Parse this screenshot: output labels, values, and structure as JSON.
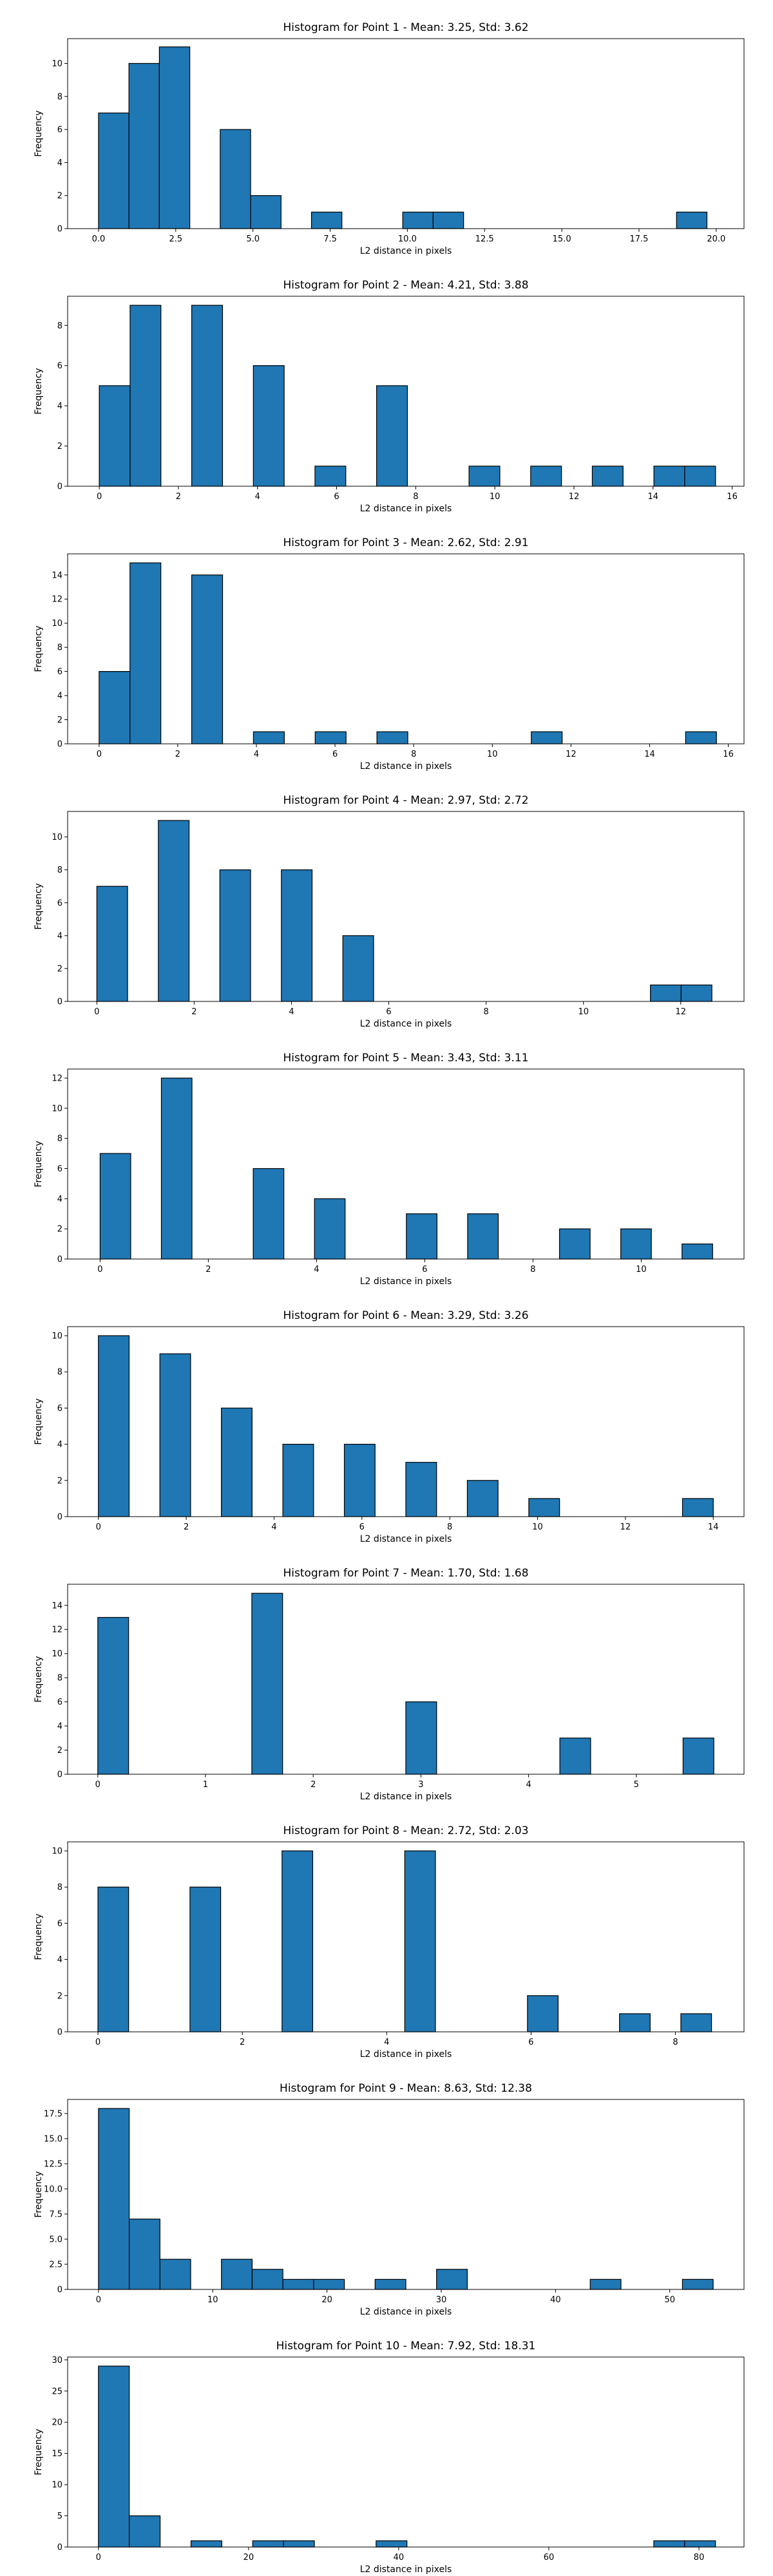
{
  "bar_color": "#1f77b4",
  "edge_color": "#000000",
  "chart_data": [
    {
      "type": "bar",
      "title": "Histogram for Point 1 - Mean: 3.25, Std: 3.62",
      "xlabel": "L2 distance in pixels",
      "ylabel": "Frequency",
      "xlim": [
        -1,
        20.9
      ],
      "ylim": [
        0,
        11.5
      ],
      "xticks": [
        0.0,
        2.5,
        5.0,
        7.5,
        10.0,
        12.5,
        15.0,
        17.5,
        20.0
      ],
      "xtick_labels": [
        "0.0",
        "2.5",
        "5.0",
        "7.5",
        "10.0",
        "12.5",
        "15.0",
        "17.5",
        "20.0"
      ],
      "yticks": [
        0,
        2,
        4,
        6,
        8,
        10
      ],
      "ytick_labels": [
        "0",
        "2",
        "4",
        "6",
        "8",
        "10"
      ],
      "bin_start": 0.0,
      "bin_width": 0.985,
      "values": [
        7,
        10,
        11,
        0,
        6,
        2,
        0,
        1,
        0,
        0,
        1,
        1,
        0,
        0,
        0,
        0,
        0,
        0,
        0,
        1
      ]
    },
    {
      "type": "bar",
      "title": "Histogram for Point 2 - Mean: 4.21, Std: 3.88",
      "xlabel": "L2 distance in pixels",
      "ylabel": "Frequency",
      "xlim": [
        -0.8,
        16.3
      ],
      "ylim": [
        0,
        9.45
      ],
      "xticks": [
        0,
        2,
        4,
        6,
        8,
        10,
        12,
        14,
        16
      ],
      "xtick_labels": [
        "0",
        "2",
        "4",
        "6",
        "8",
        "10",
        "12",
        "14",
        "16"
      ],
      "yticks": [
        0,
        2,
        4,
        6,
        8
      ],
      "ytick_labels": [
        "0",
        "2",
        "4",
        "6",
        "8"
      ],
      "bin_start": 0.0,
      "bin_width": 0.779,
      "values": [
        5,
        9,
        0,
        9,
        0,
        6,
        0,
        1,
        0,
        5,
        0,
        0,
        1,
        0,
        1,
        0,
        1,
        0,
        1,
        1
      ]
    },
    {
      "type": "bar",
      "title": "Histogram for Point 3 - Mean: 2.62, Std: 2.91",
      "xlabel": "L2 distance in pixels",
      "ylabel": "Frequency",
      "xlim": [
        -0.8,
        16.4
      ],
      "ylim": [
        0,
        15.75
      ],
      "xticks": [
        0,
        2,
        4,
        6,
        8,
        10,
        12,
        14,
        16
      ],
      "xtick_labels": [
        "0",
        "2",
        "4",
        "6",
        "8",
        "10",
        "12",
        "14",
        "16"
      ],
      "yticks": [
        0,
        2,
        4,
        6,
        8,
        10,
        12,
        14
      ],
      "ytick_labels": [
        "0",
        "2",
        "4",
        "6",
        "8",
        "10",
        "12",
        "14"
      ],
      "bin_start": 0.0,
      "bin_width": 0.785,
      "values": [
        6,
        15,
        0,
        14,
        0,
        1,
        0,
        1,
        0,
        1,
        0,
        0,
        0,
        0,
        1,
        0,
        0,
        0,
        0,
        1
      ]
    },
    {
      "type": "bar",
      "title": "Histogram for Point 4 - Mean: 2.97, Std: 2.72",
      "xlabel": "L2 distance in pixels",
      "ylabel": "Frequency",
      "xlim": [
        -0.6,
        13.3
      ],
      "ylim": [
        0,
        11.55
      ],
      "xticks": [
        0,
        2,
        4,
        6,
        8,
        10,
        12
      ],
      "xtick_labels": [
        "0",
        "2",
        "4",
        "6",
        "8",
        "10",
        "12"
      ],
      "yticks": [
        0,
        2,
        4,
        6,
        8,
        10
      ],
      "ytick_labels": [
        "0",
        "2",
        "4",
        "6",
        "8",
        "10"
      ],
      "bin_start": 0.0,
      "bin_width": 0.632,
      "values": [
        7,
        0,
        11,
        0,
        8,
        0,
        8,
        0,
        4,
        0,
        0,
        0,
        0,
        0,
        0,
        0,
        0,
        0,
        1,
        1
      ]
    },
    {
      "type": "bar",
      "title": "Histogram for Point 5 - Mean: 3.43, Std: 3.11",
      "xlabel": "L2 distance in pixels",
      "ylabel": "Frequency",
      "xlim": [
        -0.6,
        11.9
      ],
      "ylim": [
        0,
        12.6
      ],
      "xticks": [
        0,
        2,
        4,
        6,
        8,
        10
      ],
      "xtick_labels": [
        "0",
        "2",
        "4",
        "6",
        "8",
        "10"
      ],
      "yticks": [
        0,
        2,
        4,
        6,
        8,
        10,
        12
      ],
      "ytick_labels": [
        "0",
        "2",
        "4",
        "6",
        "8",
        "10",
        "12"
      ],
      "bin_start": 0.0,
      "bin_width": 0.566,
      "values": [
        7,
        0,
        12,
        0,
        0,
        6,
        0,
        4,
        0,
        0,
        3,
        0,
        3,
        0,
        0,
        2,
        0,
        2,
        0,
        1
      ]
    },
    {
      "type": "bar",
      "title": "Histogram for Point 6 - Mean: 3.29, Std: 3.26",
      "xlabel": "L2 distance in pixels",
      "ylabel": "Frequency",
      "xlim": [
        -0.7,
        14.7
      ],
      "ylim": [
        0,
        10.5
      ],
      "xticks": [
        0,
        2,
        4,
        6,
        8,
        10,
        12,
        14
      ],
      "xtick_labels": [
        "0",
        "2",
        "4",
        "6",
        "8",
        "10",
        "12",
        "14"
      ],
      "yticks": [
        0,
        2,
        4,
        6,
        8,
        10
      ],
      "ytick_labels": [
        "0",
        "2",
        "4",
        "6",
        "8",
        "10"
      ],
      "bin_start": 0.0,
      "bin_width": 0.7,
      "values": [
        10,
        0,
        9,
        0,
        6,
        0,
        4,
        0,
        4,
        0,
        3,
        0,
        2,
        0,
        1,
        0,
        0,
        0,
        0,
        1
      ]
    },
    {
      "type": "bar",
      "title": "Histogram for Point 7 - Mean: 1.70, Std: 1.68",
      "xlabel": "L2 distance in pixels",
      "ylabel": "Frequency",
      "xlim": [
        -0.28,
        6.0
      ],
      "ylim": [
        0,
        15.75
      ],
      "xticks": [
        0,
        1,
        2,
        3,
        4,
        5
      ],
      "xtick_labels": [
        "0",
        "1",
        "2",
        "3",
        "4",
        "5"
      ],
      "yticks": [
        0,
        2,
        4,
        6,
        8,
        10,
        12,
        14
      ],
      "ytick_labels": [
        "0",
        "2",
        "4",
        "6",
        "8",
        "10",
        "12",
        "14"
      ],
      "bin_start": 0.0,
      "bin_width": 0.286,
      "values": [
        13,
        0,
        0,
        0,
        0,
        15,
        0,
        0,
        0,
        0,
        6,
        0,
        0,
        0,
        0,
        3,
        0,
        0,
        0,
        3
      ]
    },
    {
      "type": "bar",
      "title": "Histogram for Point 8 - Mean: 2.72, Std: 2.03",
      "xlabel": "L2 distance in pixels",
      "ylabel": "Frequency",
      "xlim": [
        -0.42,
        8.95
      ],
      "ylim": [
        0,
        10.5
      ],
      "xticks": [
        0,
        2,
        4,
        6,
        8
      ],
      "xtick_labels": [
        "0",
        "2",
        "4",
        "6",
        "8"
      ],
      "yticks": [
        0,
        2,
        4,
        6,
        8,
        10
      ],
      "ytick_labels": [
        "0",
        "2",
        "4",
        "6",
        "8",
        "10"
      ],
      "bin_start": 0.0,
      "bin_width": 0.425,
      "values": [
        8,
        0,
        0,
        8,
        0,
        0,
        10,
        0,
        0,
        0,
        10,
        0,
        0,
        0,
        2,
        0,
        0,
        1,
        0,
        1
      ]
    },
    {
      "type": "bar",
      "title": "Histogram for Point 9 - Mean: 8.63, Std: 12.38",
      "xlabel": "L2 distance in pixels",
      "ylabel": "Frequency",
      "xlim": [
        -2.7,
        56.5
      ],
      "ylim": [
        0,
        18.9
      ],
      "xticks": [
        0,
        10,
        20,
        30,
        40,
        50
      ],
      "xtick_labels": [
        "0",
        "10",
        "20",
        "30",
        "40",
        "50"
      ],
      "yticks": [
        0,
        2.5,
        5.0,
        7.5,
        10.0,
        12.5,
        15.0,
        17.5
      ],
      "ytick_labels": [
        "0",
        "2.5",
        "5.0",
        "7.5",
        "10.0",
        "12.5",
        "15.0",
        "17.5"
      ],
      "bin_start": 0.0,
      "bin_width": 2.69,
      "values": [
        18,
        7,
        3,
        0,
        3,
        2,
        1,
        1,
        0,
        1,
        0,
        2,
        0,
        0,
        0,
        0,
        1,
        0,
        0,
        1
      ]
    },
    {
      "type": "bar",
      "title": "Histogram for Point 10 - Mean: 7.92, Std: 18.31",
      "xlabel": "L2 distance in pixels",
      "ylabel": "Frequency",
      "xlim": [
        -4.1,
        86.0
      ],
      "ylim": [
        0,
        30.45
      ],
      "xticks": [
        0,
        20,
        40,
        60,
        80
      ],
      "xtick_labels": [
        "0",
        "20",
        "40",
        "60",
        "80"
      ],
      "yticks": [
        0,
        5,
        10,
        15,
        20,
        25,
        30
      ],
      "ytick_labels": [
        "0",
        "5",
        "10",
        "15",
        "20",
        "25",
        "30"
      ],
      "bin_start": 0.0,
      "bin_width": 4.11,
      "values": [
        29,
        5,
        0,
        1,
        0,
        1,
        1,
        0,
        0,
        1,
        0,
        0,
        0,
        0,
        0,
        0,
        0,
        0,
        1,
        1
      ]
    }
  ]
}
